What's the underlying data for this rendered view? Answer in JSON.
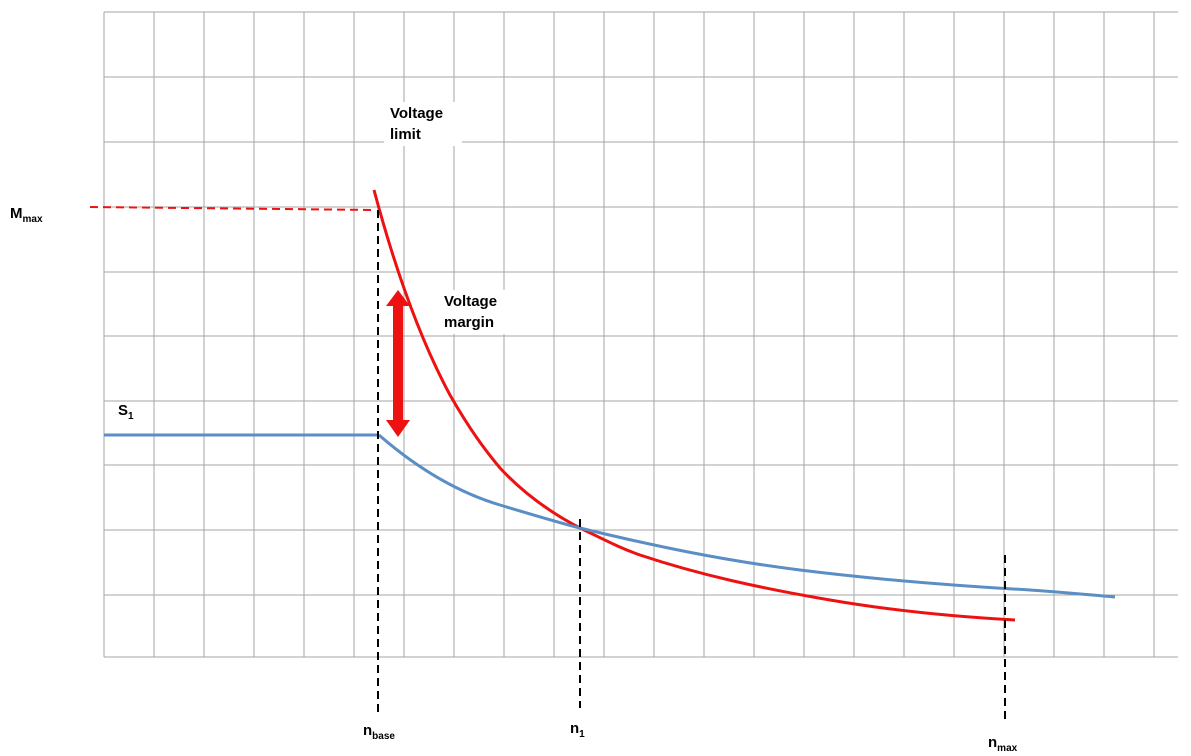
{
  "labels": {
    "m_max": {
      "main": "M",
      "sub": "max"
    },
    "s_1": {
      "main": "S",
      "sub": "1"
    },
    "n_base": {
      "main": "n",
      "sub": "base"
    },
    "n_1": {
      "main": "n",
      "sub": "1"
    },
    "n_max": {
      "main": "n",
      "sub": "max"
    }
  },
  "annotations": {
    "voltage_limit": {
      "line1": "Voltage",
      "line2": "limit"
    },
    "voltage_margin": {
      "line1": "Voltage",
      "line2": "margin"
    }
  },
  "colors": {
    "grid": "#a6a6a6",
    "red_curve": "#ee1111",
    "blue_curve": "#5b8ec4",
    "marker": "#000000"
  }
}
